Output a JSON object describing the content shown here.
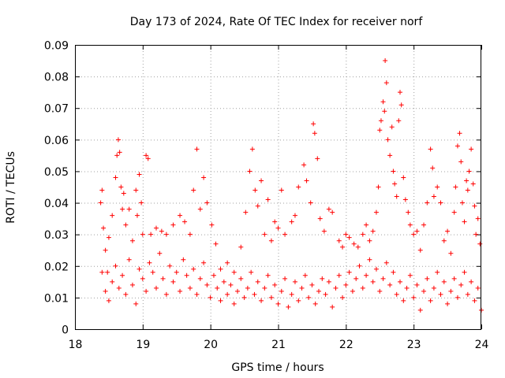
{
  "chart_data": {
    "type": "scatter",
    "title": "Day 173 of 2024, Rate Of TEC Index for receiver norf",
    "xlabel": "GPS time / hours",
    "ylabel": "ROTI / TECUs",
    "xlim": [
      18,
      24
    ],
    "ylim": [
      0,
      0.09
    ],
    "x_ticks": [
      "18",
      "19",
      "20",
      "21",
      "22",
      "23",
      "24"
    ],
    "y_ticks": [
      "0",
      "0.01",
      "0.02",
      "0.03",
      "0.04",
      "0.05",
      "0.06",
      "0.07",
      "0.08",
      "0.09"
    ],
    "grid": true,
    "marker": "+",
    "color": "#ff0000",
    "series": [
      {
        "name": "ROTI",
        "points": [
          [
            18.38,
            0.04
          ],
          [
            18.4,
            0.044
          ],
          [
            18.42,
            0.032
          ],
          [
            18.45,
            0.025
          ],
          [
            18.48,
            0.018
          ],
          [
            18.5,
            0.029
          ],
          [
            18.55,
            0.036
          ],
          [
            18.6,
            0.048
          ],
          [
            18.62,
            0.055
          ],
          [
            18.64,
            0.06
          ],
          [
            18.66,
            0.056
          ],
          [
            18.68,
            0.045
          ],
          [
            18.7,
            0.038
          ],
          [
            18.72,
            0.043
          ],
          [
            18.75,
            0.033
          ],
          [
            18.8,
            0.038
          ],
          [
            18.85,
            0.028
          ],
          [
            18.9,
            0.044
          ],
          [
            18.92,
            0.036
          ],
          [
            18.95,
            0.049
          ],
          [
            18.98,
            0.04
          ],
          [
            19.0,
            0.03
          ],
          [
            19.05,
            0.055
          ],
          [
            19.08,
            0.054
          ],
          [
            19.12,
            0.03
          ],
          [
            19.2,
            0.032
          ],
          [
            19.28,
            0.031
          ],
          [
            19.35,
            0.03
          ],
          [
            19.45,
            0.033
          ],
          [
            19.55,
            0.036
          ],
          [
            19.62,
            0.034
          ],
          [
            19.7,
            0.03
          ],
          [
            19.75,
            0.044
          ],
          [
            19.8,
            0.057
          ],
          [
            19.85,
            0.038
          ],
          [
            19.9,
            0.048
          ],
          [
            19.95,
            0.04
          ],
          [
            20.02,
            0.033
          ],
          [
            20.08,
            0.027
          ],
          [
            20.15,
            0.019
          ],
          [
            20.25,
            0.021
          ],
          [
            20.35,
            0.018
          ],
          [
            20.45,
            0.026
          ],
          [
            20.52,
            0.037
          ],
          [
            20.58,
            0.05
          ],
          [
            20.62,
            0.057
          ],
          [
            20.66,
            0.044
          ],
          [
            20.7,
            0.039
          ],
          [
            20.75,
            0.047
          ],
          [
            20.8,
            0.03
          ],
          [
            20.85,
            0.041
          ],
          [
            20.9,
            0.028
          ],
          [
            20.95,
            0.034
          ],
          [
            21.0,
            0.032
          ],
          [
            21.05,
            0.044
          ],
          [
            21.1,
            0.03
          ],
          [
            21.2,
            0.034
          ],
          [
            21.25,
            0.036
          ],
          [
            21.3,
            0.045
          ],
          [
            21.38,
            0.052
          ],
          [
            21.42,
            0.047
          ],
          [
            21.48,
            0.04
          ],
          [
            21.52,
            0.065
          ],
          [
            21.54,
            0.062
          ],
          [
            21.58,
            0.054
          ],
          [
            21.62,
            0.035
          ],
          [
            21.68,
            0.031
          ],
          [
            21.75,
            0.038
          ],
          [
            21.8,
            0.037
          ],
          [
            21.9,
            0.028
          ],
          [
            21.95,
            0.026
          ],
          [
            22.0,
            0.03
          ],
          [
            22.05,
            0.029
          ],
          [
            22.12,
            0.027
          ],
          [
            22.18,
            0.026
          ],
          [
            22.25,
            0.03
          ],
          [
            22.3,
            0.033
          ],
          [
            22.35,
            0.028
          ],
          [
            22.4,
            0.031
          ],
          [
            22.45,
            0.037
          ],
          [
            22.48,
            0.045
          ],
          [
            22.5,
            0.063
          ],
          [
            22.52,
            0.066
          ],
          [
            22.55,
            0.072
          ],
          [
            22.57,
            0.069
          ],
          [
            22.58,
            0.085
          ],
          [
            22.6,
            0.078
          ],
          [
            22.62,
            0.06
          ],
          [
            22.65,
            0.055
          ],
          [
            22.68,
            0.064
          ],
          [
            22.7,
            0.05
          ],
          [
            22.72,
            0.046
          ],
          [
            22.75,
            0.042
          ],
          [
            22.78,
            0.066
          ],
          [
            22.8,
            0.075
          ],
          [
            22.82,
            0.071
          ],
          [
            22.85,
            0.048
          ],
          [
            22.88,
            0.041
          ],
          [
            22.92,
            0.037
          ],
          [
            22.95,
            0.033
          ],
          [
            23.0,
            0.03
          ],
          [
            23.05,
            0.031
          ],
          [
            23.1,
            0.025
          ],
          [
            23.15,
            0.033
          ],
          [
            23.2,
            0.04
          ],
          [
            23.25,
            0.057
          ],
          [
            23.28,
            0.051
          ],
          [
            23.3,
            0.042
          ],
          [
            23.35,
            0.045
          ],
          [
            23.4,
            0.04
          ],
          [
            23.45,
            0.028
          ],
          [
            23.5,
            0.031
          ],
          [
            23.55,
            0.024
          ],
          [
            23.6,
            0.037
          ],
          [
            23.62,
            0.045
          ],
          [
            23.65,
            0.058
          ],
          [
            23.68,
            0.062
          ],
          [
            23.7,
            0.053
          ],
          [
            23.72,
            0.04
          ],
          [
            23.75,
            0.034
          ],
          [
            23.78,
            0.047
          ],
          [
            23.8,
            0.044
          ],
          [
            23.82,
            0.05
          ],
          [
            23.85,
            0.057
          ],
          [
            23.88,
            0.046
          ],
          [
            23.9,
            0.039
          ],
          [
            23.92,
            0.03
          ],
          [
            23.95,
            0.035
          ],
          [
            23.98,
            0.027
          ],
          [
            18.4,
            0.018
          ],
          [
            18.45,
            0.012
          ],
          [
            18.5,
            0.009
          ],
          [
            18.55,
            0.015
          ],
          [
            18.6,
            0.02
          ],
          [
            18.65,
            0.013
          ],
          [
            18.7,
            0.017
          ],
          [
            18.75,
            0.011
          ],
          [
            18.8,
            0.022
          ],
          [
            18.85,
            0.014
          ],
          [
            18.9,
            0.008
          ],
          [
            18.95,
            0.019
          ],
          [
            19.0,
            0.016
          ],
          [
            19.05,
            0.012
          ],
          [
            19.1,
            0.021
          ],
          [
            19.15,
            0.018
          ],
          [
            19.2,
            0.013
          ],
          [
            19.25,
            0.024
          ],
          [
            19.3,
            0.016
          ],
          [
            19.35,
            0.011
          ],
          [
            19.4,
            0.02
          ],
          [
            19.45,
            0.015
          ],
          [
            19.5,
            0.018
          ],
          [
            19.55,
            0.012
          ],
          [
            19.6,
            0.022
          ],
          [
            19.65,
            0.017
          ],
          [
            19.7,
            0.013
          ],
          [
            19.75,
            0.019
          ],
          [
            19.8,
            0.011
          ],
          [
            19.85,
            0.016
          ],
          [
            19.9,
            0.021
          ],
          [
            19.95,
            0.014
          ],
          [
            20.0,
            0.01
          ],
          [
            20.05,
            0.017
          ],
          [
            20.1,
            0.013
          ],
          [
            20.15,
            0.009
          ],
          [
            20.2,
            0.015
          ],
          [
            20.25,
            0.011
          ],
          [
            20.3,
            0.014
          ],
          [
            20.35,
            0.008
          ],
          [
            20.4,
            0.012
          ],
          [
            20.45,
            0.016
          ],
          [
            20.5,
            0.01
          ],
          [
            20.55,
            0.013
          ],
          [
            20.6,
            0.018
          ],
          [
            20.65,
            0.011
          ],
          [
            20.7,
            0.015
          ],
          [
            20.75,
            0.009
          ],
          [
            20.8,
            0.013
          ],
          [
            20.85,
            0.017
          ],
          [
            20.9,
            0.01
          ],
          [
            20.95,
            0.014
          ],
          [
            21.0,
            0.008
          ],
          [
            21.05,
            0.012
          ],
          [
            21.1,
            0.016
          ],
          [
            21.15,
            0.007
          ],
          [
            21.2,
            0.011
          ],
          [
            21.25,
            0.015
          ],
          [
            21.3,
            0.009
          ],
          [
            21.35,
            0.013
          ],
          [
            21.4,
            0.017
          ],
          [
            21.45,
            0.01
          ],
          [
            21.5,
            0.014
          ],
          [
            21.55,
            0.008
          ],
          [
            21.6,
            0.012
          ],
          [
            21.65,
            0.016
          ],
          [
            21.7,
            0.011
          ],
          [
            21.75,
            0.015
          ],
          [
            21.8,
            0.007
          ],
          [
            21.85,
            0.013
          ],
          [
            21.9,
            0.017
          ],
          [
            21.95,
            0.01
          ],
          [
            22.0,
            0.014
          ],
          [
            22.05,
            0.018
          ],
          [
            22.1,
            0.012
          ],
          [
            22.15,
            0.016
          ],
          [
            22.2,
            0.02
          ],
          [
            22.25,
            0.013
          ],
          [
            22.3,
            0.017
          ],
          [
            22.35,
            0.022
          ],
          [
            22.4,
            0.015
          ],
          [
            22.45,
            0.019
          ],
          [
            22.5,
            0.012
          ],
          [
            22.55,
            0.016
          ],
          [
            22.6,
            0.021
          ],
          [
            22.65,
            0.014
          ],
          [
            22.7,
            0.018
          ],
          [
            22.75,
            0.011
          ],
          [
            22.8,
            0.015
          ],
          [
            22.85,
            0.009
          ],
          [
            22.9,
            0.013
          ],
          [
            22.95,
            0.017
          ],
          [
            23.0,
            0.01
          ],
          [
            23.05,
            0.014
          ],
          [
            23.1,
            0.006
          ],
          [
            23.15,
            0.012
          ],
          [
            23.2,
            0.016
          ],
          [
            23.25,
            0.009
          ],
          [
            23.3,
            0.013
          ],
          [
            23.35,
            0.018
          ],
          [
            23.4,
            0.011
          ],
          [
            23.45,
            0.015
          ],
          [
            23.5,
            0.008
          ],
          [
            23.55,
            0.012
          ],
          [
            23.6,
            0.016
          ],
          [
            23.65,
            0.01
          ],
          [
            23.7,
            0.014
          ],
          [
            23.75,
            0.018
          ],
          [
            23.8,
            0.011
          ],
          [
            23.85,
            0.015
          ],
          [
            23.9,
            0.009
          ],
          [
            23.95,
            0.013
          ],
          [
            24.0,
            0.006
          ]
        ]
      }
    ]
  }
}
